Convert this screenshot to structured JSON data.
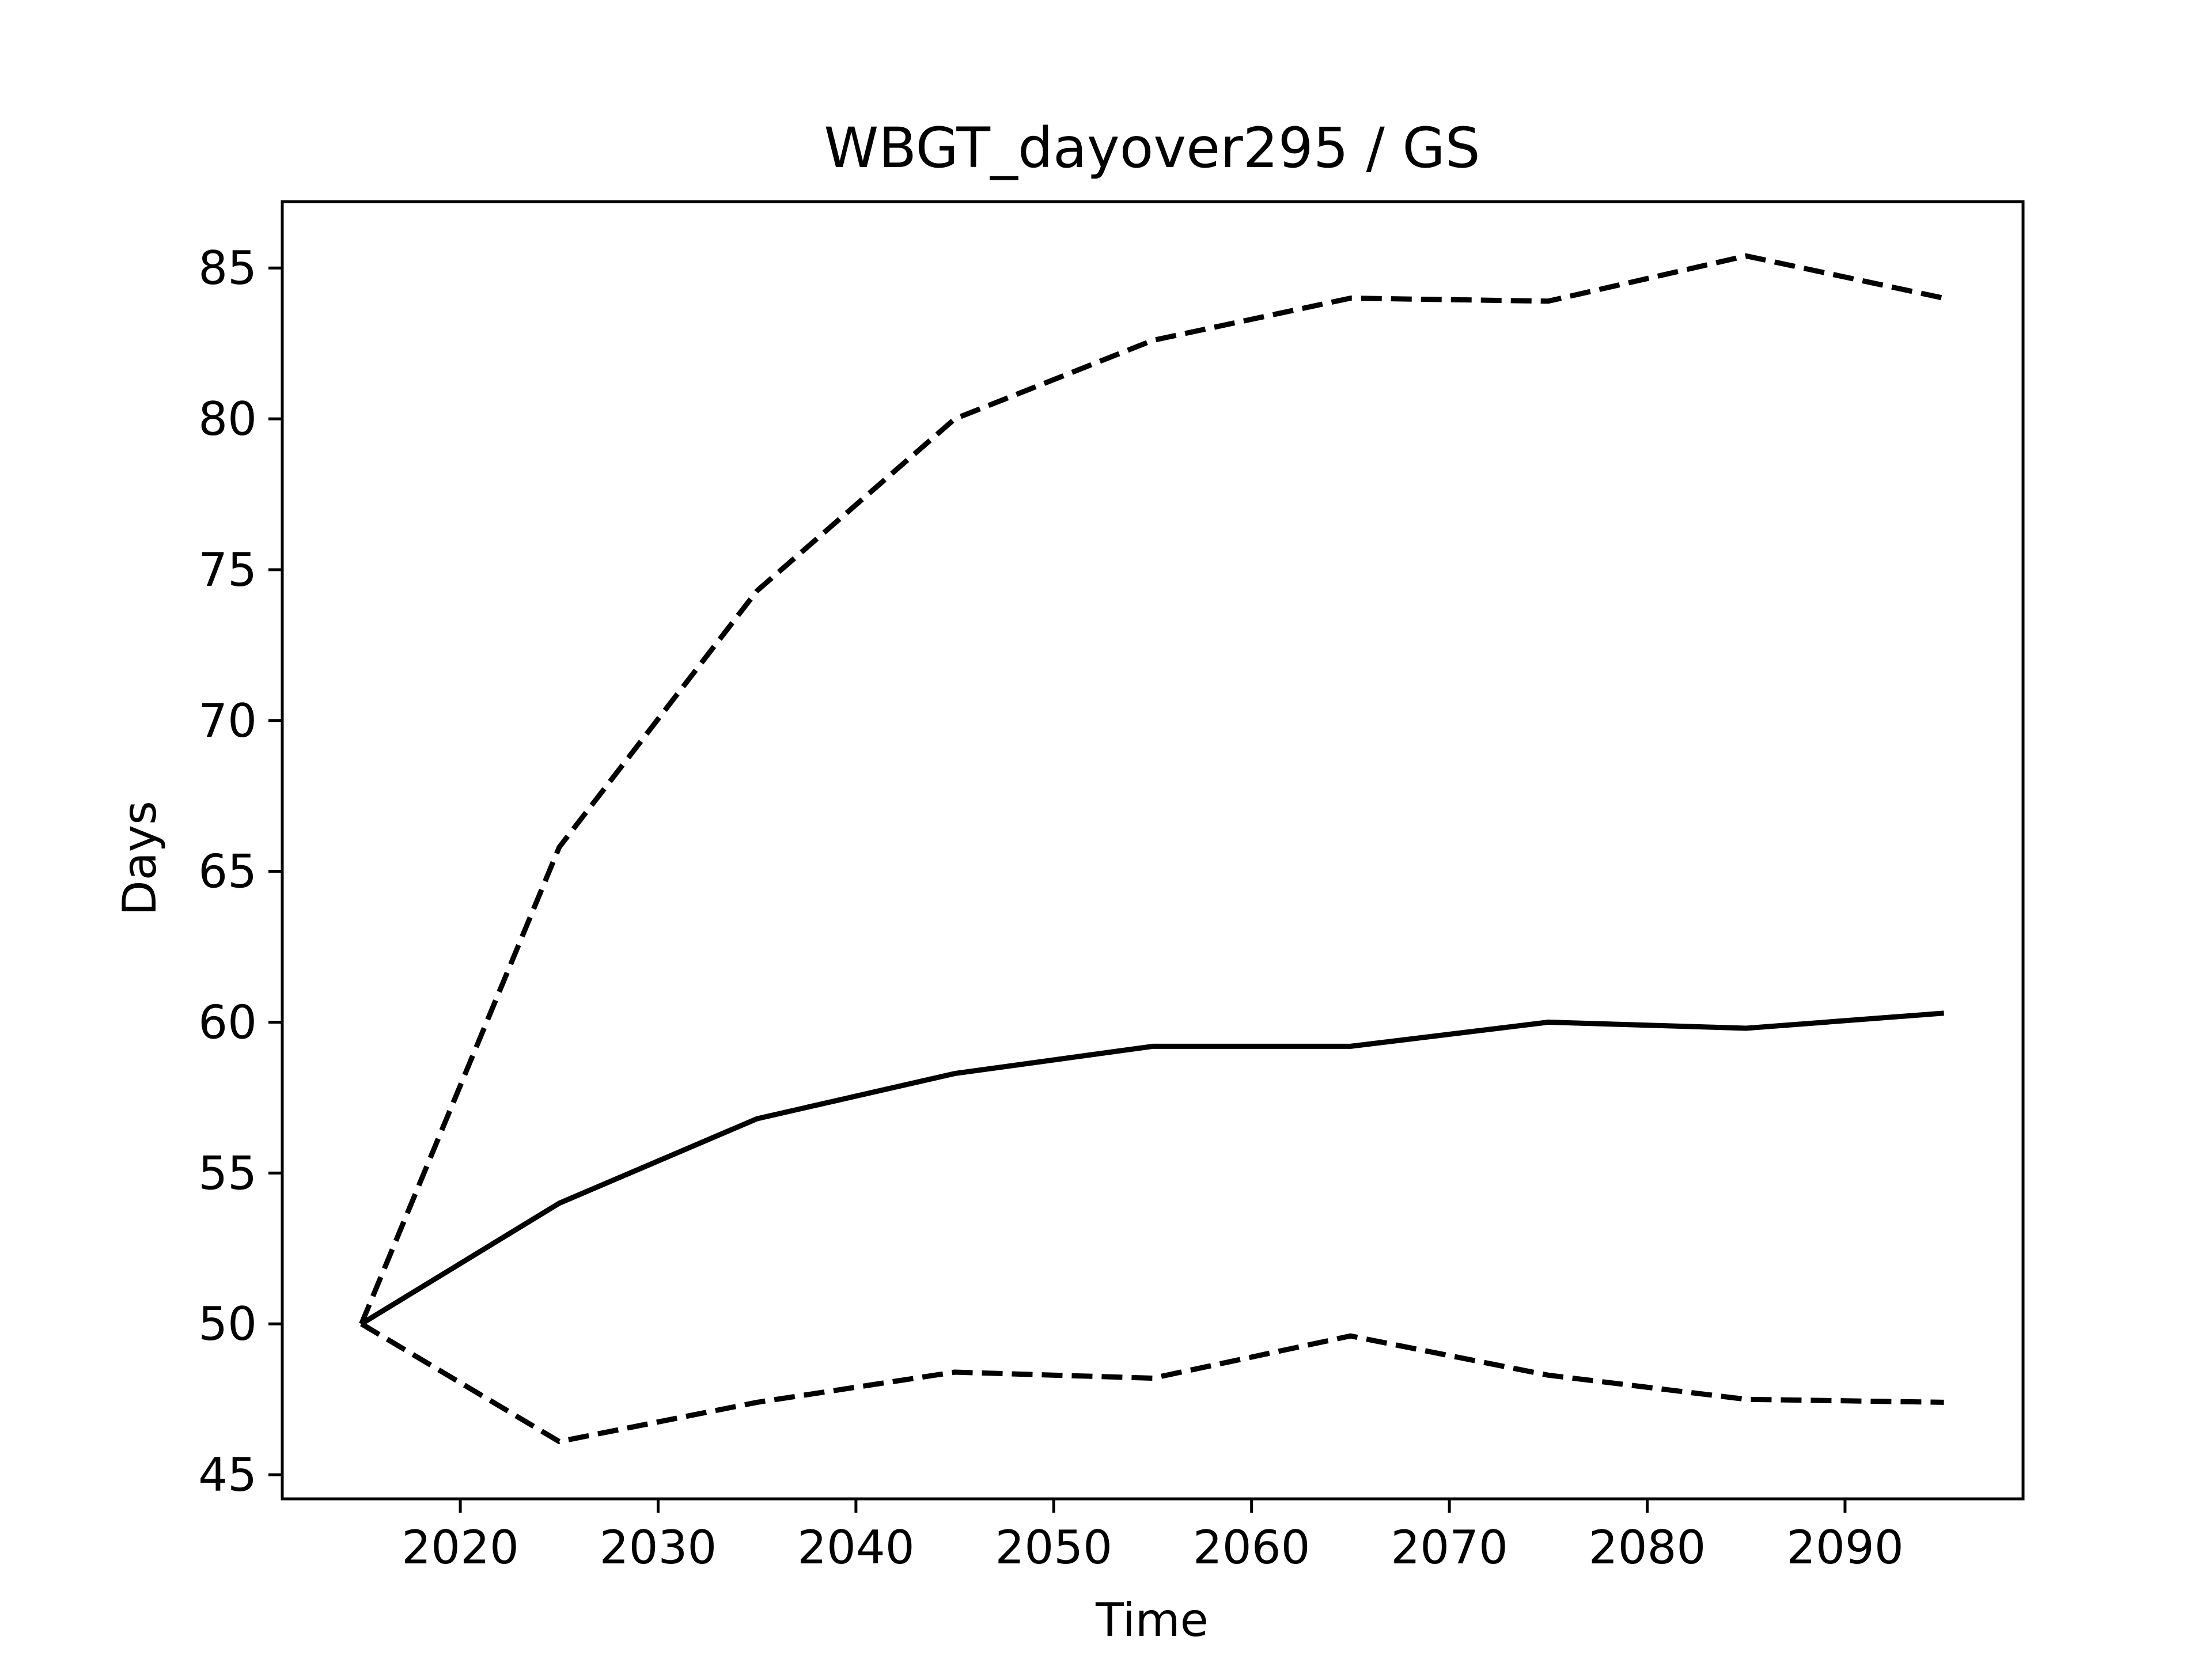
{
  "chart_data": {
    "type": "line",
    "title": "WBGT_dayover295 / GS",
    "xlabel": "Time",
    "ylabel": "Days",
    "xlim": [
      2011.0,
      2099.0
    ],
    "ylim": [
      44.2,
      87.2
    ],
    "xticks": [
      2020,
      2030,
      2040,
      2050,
      2060,
      2070,
      2080,
      2090
    ],
    "yticks": [
      45,
      50,
      55,
      60,
      65,
      70,
      75,
      80,
      85
    ],
    "grid": false,
    "legend": "none",
    "x": [
      2015,
      2025,
      2035,
      2045,
      2055,
      2065,
      2075,
      2085,
      2095
    ],
    "series": [
      {
        "style": "solid",
        "color": "#000000",
        "values": [
          50.0,
          54.0,
          56.8,
          58.3,
          59.2,
          59.2,
          60.0,
          59.8,
          60.3
        ]
      },
      {
        "style": "dashed",
        "color": "#000000",
        "values": [
          50.0,
          65.8,
          74.3,
          80.0,
          82.6,
          84.0,
          83.9,
          85.4,
          84.0
        ]
      },
      {
        "style": "dashed",
        "color": "#000000",
        "values": [
          50.0,
          46.1,
          47.4,
          48.4,
          48.2,
          49.6,
          48.3,
          47.5,
          47.4
        ]
      }
    ]
  }
}
